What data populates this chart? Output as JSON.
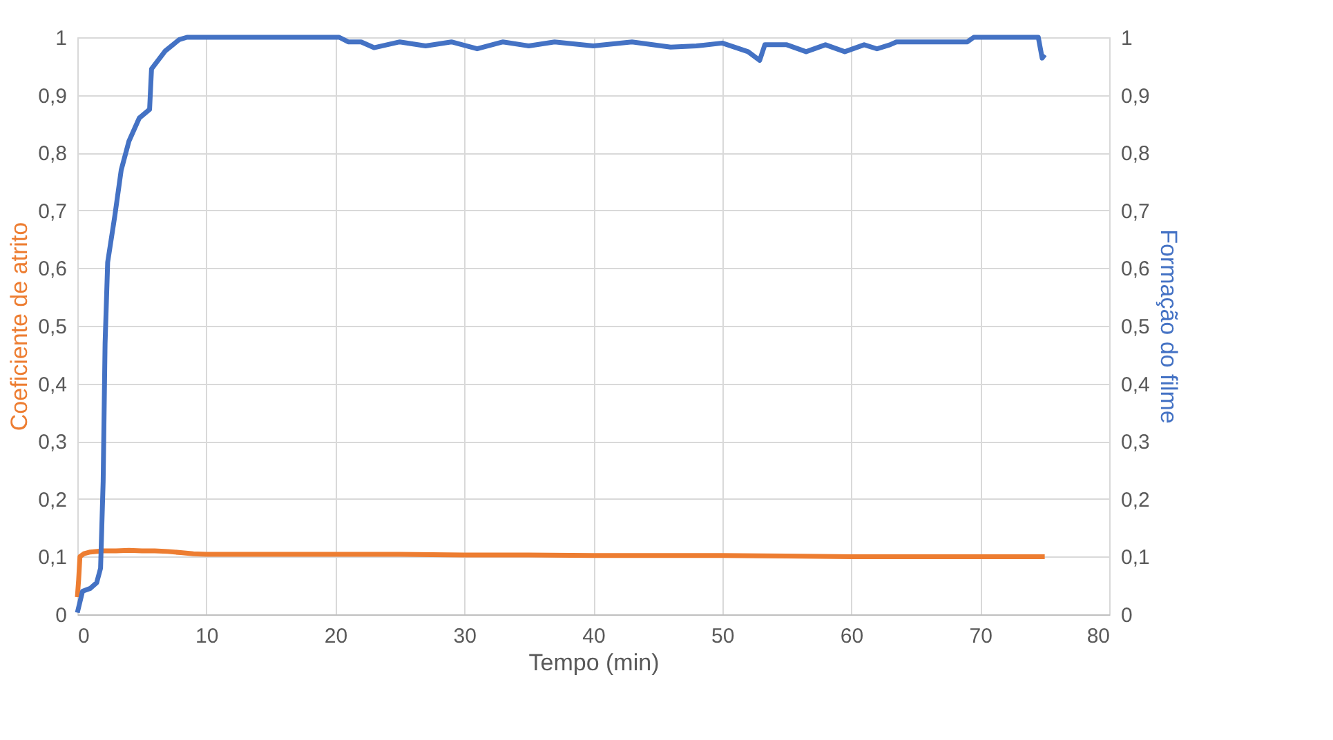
{
  "chart_data": {
    "type": "line",
    "xlabel": "Tempo (min)",
    "ylabel": "Coeficiente de atrito",
    "y2label": "Formação do filme",
    "xlim": [
      0,
      80
    ],
    "xticks": [
      0,
      10,
      20,
      30,
      40,
      50,
      60,
      70,
      80
    ],
    "ylim": [
      0,
      1
    ],
    "yticks": [
      0,
      {
        "value": 0.1,
        "label": "0,1"
      },
      {
        "value": 0.2,
        "label": "0,2"
      },
      {
        "value": 0.3,
        "label": "0,3"
      },
      {
        "value": 0.4,
        "label": "0,4"
      },
      {
        "value": 0.5,
        "label": "0,5"
      },
      {
        "value": 0.6,
        "label": "0,6"
      },
      {
        "value": 0.7,
        "label": "0,7"
      },
      {
        "value": 0.8,
        "label": "0,8"
      },
      {
        "value": 0.9,
        "label": "0,9"
      },
      1
    ],
    "y2lim": [
      0,
      1
    ],
    "y2ticks": [
      0,
      {
        "value": 0.1,
        "label": "0,1"
      },
      {
        "value": 0.2,
        "label": "0,2"
      },
      {
        "value": 0.3,
        "label": "0,3"
      },
      {
        "value": 0.4,
        "label": "0,4"
      },
      {
        "value": 0.5,
        "label": "0,5"
      },
      {
        "value": 0.6,
        "label": "0,6"
      },
      {
        "value": 0.7,
        "label": "0,7"
      },
      {
        "value": 0.8,
        "label": "0,8"
      },
      {
        "value": 0.9,
        "label": "0,9"
      },
      1
    ],
    "grid": true,
    "marker": "none",
    "line_style": "solid",
    "series": [
      {
        "color": "#ed7d31",
        "axis": "y",
        "x": [
          0,
          0.1,
          0.2,
          0.5,
          1,
          2,
          3,
          4,
          5,
          6,
          7,
          8,
          9,
          10,
          15,
          20,
          25,
          30,
          35,
          40,
          45,
          50,
          55,
          60,
          65,
          70,
          75
        ],
        "values": [
          0.03,
          0.06,
          0.1,
          0.105,
          0.108,
          0.11,
          0.11,
          0.111,
          0.11,
          0.11,
          0.109,
          0.107,
          0.105,
          0.104,
          0.104,
          0.104,
          0.104,
          0.103,
          0.103,
          0.102,
          0.102,
          0.102,
          0.101,
          0.1,
          0.1,
          0.1,
          0.1
        ]
      },
      {
        "color": "#4472c4",
        "axis": "y2",
        "x": [
          0,
          0.4,
          1,
          1.5,
          1.8,
          2,
          2.15,
          2.35,
          2.9,
          3.4,
          4,
          4.8,
          5.6,
          5.75,
          6.8,
          7.9,
          8.5,
          15,
          20.3,
          21,
          22,
          23,
          25,
          27,
          29,
          31,
          33,
          35,
          37,
          40,
          43,
          46,
          48,
          50,
          52,
          52.9,
          53.3,
          55,
          56.5,
          58,
          59.5,
          61,
          62,
          63,
          63.5,
          66,
          69,
          69.5,
          72,
          74.5,
          74.8,
          75
        ],
        "values": [
          0.003,
          0.04,
          0.045,
          0.055,
          0.08,
          0.23,
          0.47,
          0.61,
          0.69,
          0.77,
          0.82,
          0.86,
          0.875,
          0.945,
          0.976,
          0.996,
          1,
          1,
          1,
          0.992,
          0.992,
          0.982,
          0.992,
          0.985,
          0.992,
          0.98,
          0.992,
          0.985,
          0.992,
          0.985,
          0.992,
          0.983,
          0.985,
          0.99,
          0.975,
          0.96,
          0.987,
          0.987,
          0.975,
          0.987,
          0.975,
          0.987,
          0.98,
          0.987,
          0.992,
          0.992,
          0.992,
          1,
          1,
          1,
          0.964,
          0.97
        ]
      }
    ]
  }
}
